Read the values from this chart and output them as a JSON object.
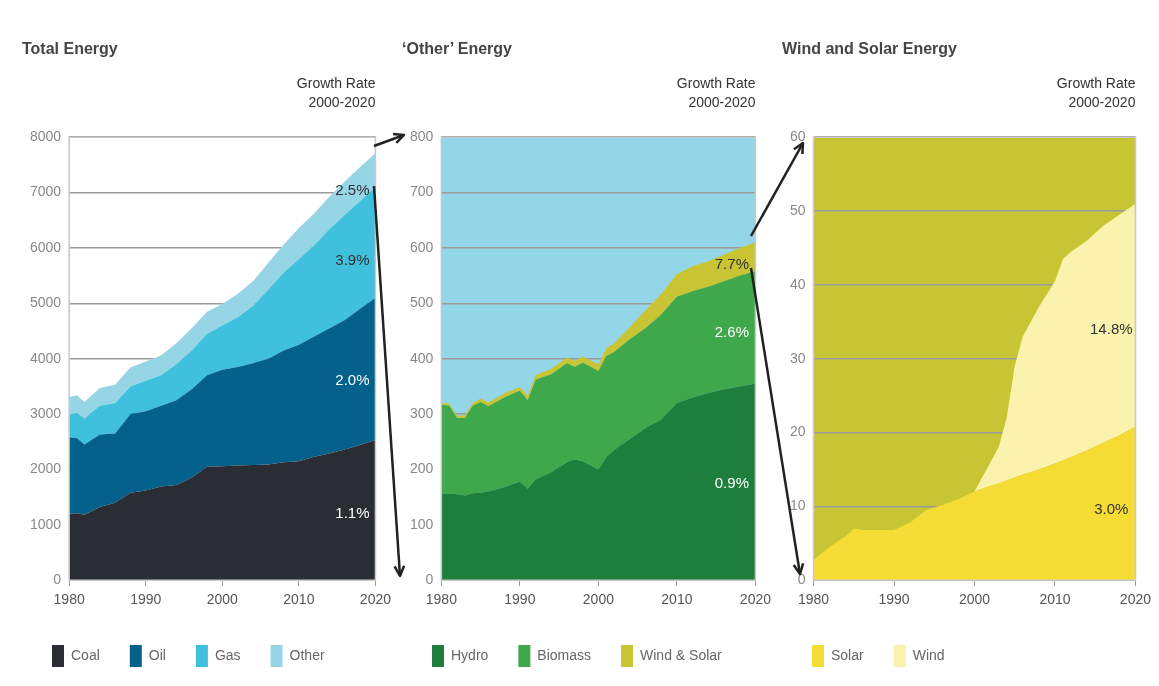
{
  "chart_data": [
    {
      "type": "area",
      "title": "Total Energy",
      "stacked": true,
      "grid": "y",
      "legend": "bottom",
      "xlim": [
        1980,
        2020
      ],
      "xticks": [
        1980,
        1990,
        2000,
        2010,
        2020
      ],
      "ylim": [
        0,
        8000
      ],
      "yticks": [
        0,
        1000,
        2000,
        3000,
        4000,
        5000,
        6000,
        7000,
        8000
      ],
      "annotations": [
        "Growth Rate 2000-2020",
        "2.5%",
        "3.9%",
        "2.0%",
        "1.1%"
      ],
      "x": [
        1980,
        1981,
        1982,
        1984,
        1986,
        1988,
        1990,
        1992,
        1994,
        1996,
        1998,
        2000,
        2002,
        2004,
        2006,
        2008,
        2010,
        2012,
        2014,
        2016,
        2018,
        2020
      ],
      "series": [
        {
          "name": "Coal",
          "color": "#2a2d34",
          "values": [
            1200,
            1210,
            1180,
            1320,
            1400,
            1580,
            1620,
            1690,
            1720,
            1850,
            2050,
            2060,
            2070,
            2080,
            2090,
            2130,
            2150,
            2230,
            2290,
            2360,
            2440,
            2530
          ]
        },
        {
          "name": "Oil",
          "color": "#03618c",
          "values": [
            1380,
            1360,
            1270,
            1310,
            1250,
            1420,
            1430,
            1460,
            1530,
            1600,
            1650,
            1740,
            1780,
            1840,
            1910,
            2020,
            2100,
            2170,
            2260,
            2340,
            2460,
            2570
          ]
        },
        {
          "name": "Gas",
          "color": "#3fc0dc",
          "values": [
            410,
            450,
            470,
            520,
            550,
            500,
            550,
            550,
            650,
            700,
            750,
            800,
            900,
            1030,
            1250,
            1400,
            1550,
            1650,
            1790,
            1900,
            1950,
            2000
          ]
        },
        {
          "name": "Other",
          "color": "#96d5e6",
          "values": [
            320,
            320,
            300,
            320,
            330,
            340,
            350,
            360,
            380,
            400,
            400,
            390,
            420,
            450,
            480,
            510,
            560,
            570,
            590,
            600,
            610,
            610
          ]
        }
      ]
    },
    {
      "type": "area",
      "title": "‘Other’ Energy",
      "stacked": true,
      "grid": "y",
      "legend": "bottom",
      "xlim": [
        1980,
        2020
      ],
      "xticks": [
        1980,
        1990,
        2000,
        2010,
        2020
      ],
      "ylim": [
        0,
        800
      ],
      "yticks": [
        0,
        100,
        200,
        300,
        400,
        500,
        600,
        700,
        800
      ],
      "bands": [
        {
          "axis": "y",
          "from": 0,
          "to": 800,
          "color": "#93d6e8"
        }
      ],
      "annotations": [
        "Growth Rate 2000-2020",
        "7.7%",
        "2.6%",
        "0.9%"
      ],
      "x": [
        1980,
        1981,
        1982,
        1983,
        1984,
        1985,
        1986,
        1988,
        1990,
        1991,
        1992,
        1994,
        1996,
        1997,
        1998,
        2000,
        2001,
        2002,
        2004,
        2006,
        2008,
        2010,
        2012,
        2014,
        2016,
        2018,
        2020
      ],
      "series": [
        {
          "name": "Hydro",
          "color": "#1e7e3c",
          "values": [
            155,
            156,
            155,
            153,
            157,
            158,
            160,
            168,
            178,
            165,
            182,
            195,
            213,
            218,
            215,
            200,
            222,
            235,
            255,
            275,
            290,
            320,
            330,
            338,
            345,
            350,
            355
          ]
        },
        {
          "name": "Biomass",
          "color": "#3fa84a",
          "values": [
            162,
            159,
            138,
            140,
            158,
            164,
            154,
            162,
            164,
            160,
            180,
            177,
            179,
            167,
            178,
            178,
            183,
            177,
            180,
            180,
            190,
            192,
            192,
            192,
            195,
            200,
            203
          ]
        },
        {
          "name": "Wind & Solar",
          "color": "#c9c433",
          "values": [
            3,
            4,
            4,
            5,
            5,
            6,
            7,
            7,
            7,
            8,
            8,
            10,
            10,
            11,
            11,
            12,
            14,
            16,
            22,
            33,
            37,
            41,
            45,
            46,
            48,
            50,
            52
          ]
        }
      ]
    },
    {
      "type": "area",
      "title": "Wind and Solar Energy",
      "stacked": true,
      "grid": "y",
      "legend": "bottom",
      "xlim": [
        1980,
        2020
      ],
      "xticks": [
        1980,
        1990,
        2000,
        2010,
        2020
      ],
      "ylim": [
        0,
        60
      ],
      "yticks": [
        0,
        10,
        20,
        30,
        40,
        50,
        60
      ],
      "bands": [
        {
          "axis": "y",
          "from": 0,
          "to": 60,
          "color": "#c8c534"
        }
      ],
      "annotations": [
        "Growth Rate 2000-2020",
        "14.8%",
        "3.0%"
      ],
      "x": [
        1980,
        1982,
        1984,
        1985,
        1986,
        1988,
        1990,
        1992,
        1994,
        1996,
        1998,
        2000,
        2002,
        2003,
        2004,
        2005,
        2006,
        2008,
        2010,
        2011,
        2012,
        2014,
        2016,
        2018,
        2020
      ],
      "series": [
        {
          "name": "Solar",
          "color": "#f5dc34",
          "values": [
            2.8,
            4.5,
            6,
            7,
            6.8,
            6.8,
            6.8,
            7.8,
            9.5,
            10.2,
            11,
            12,
            12.8,
            13.1,
            13.5,
            13.9,
            14.3,
            15,
            15.8,
            16.2,
            16.7,
            17.6,
            18.6,
            19.6,
            20.8
          ]
        },
        {
          "name": "Wind",
          "color": "#fbf2ad",
          "values": [
            0,
            0,
            0,
            0,
            0,
            0,
            0,
            0,
            0,
            0,
            0,
            0,
            3.2,
            4.9,
            8.5,
            15.1,
            18.7,
            22,
            24.7,
            27.3,
            27.8,
            28.4,
            29.4,
            29.9,
            30.2
          ]
        }
      ]
    }
  ]
}
